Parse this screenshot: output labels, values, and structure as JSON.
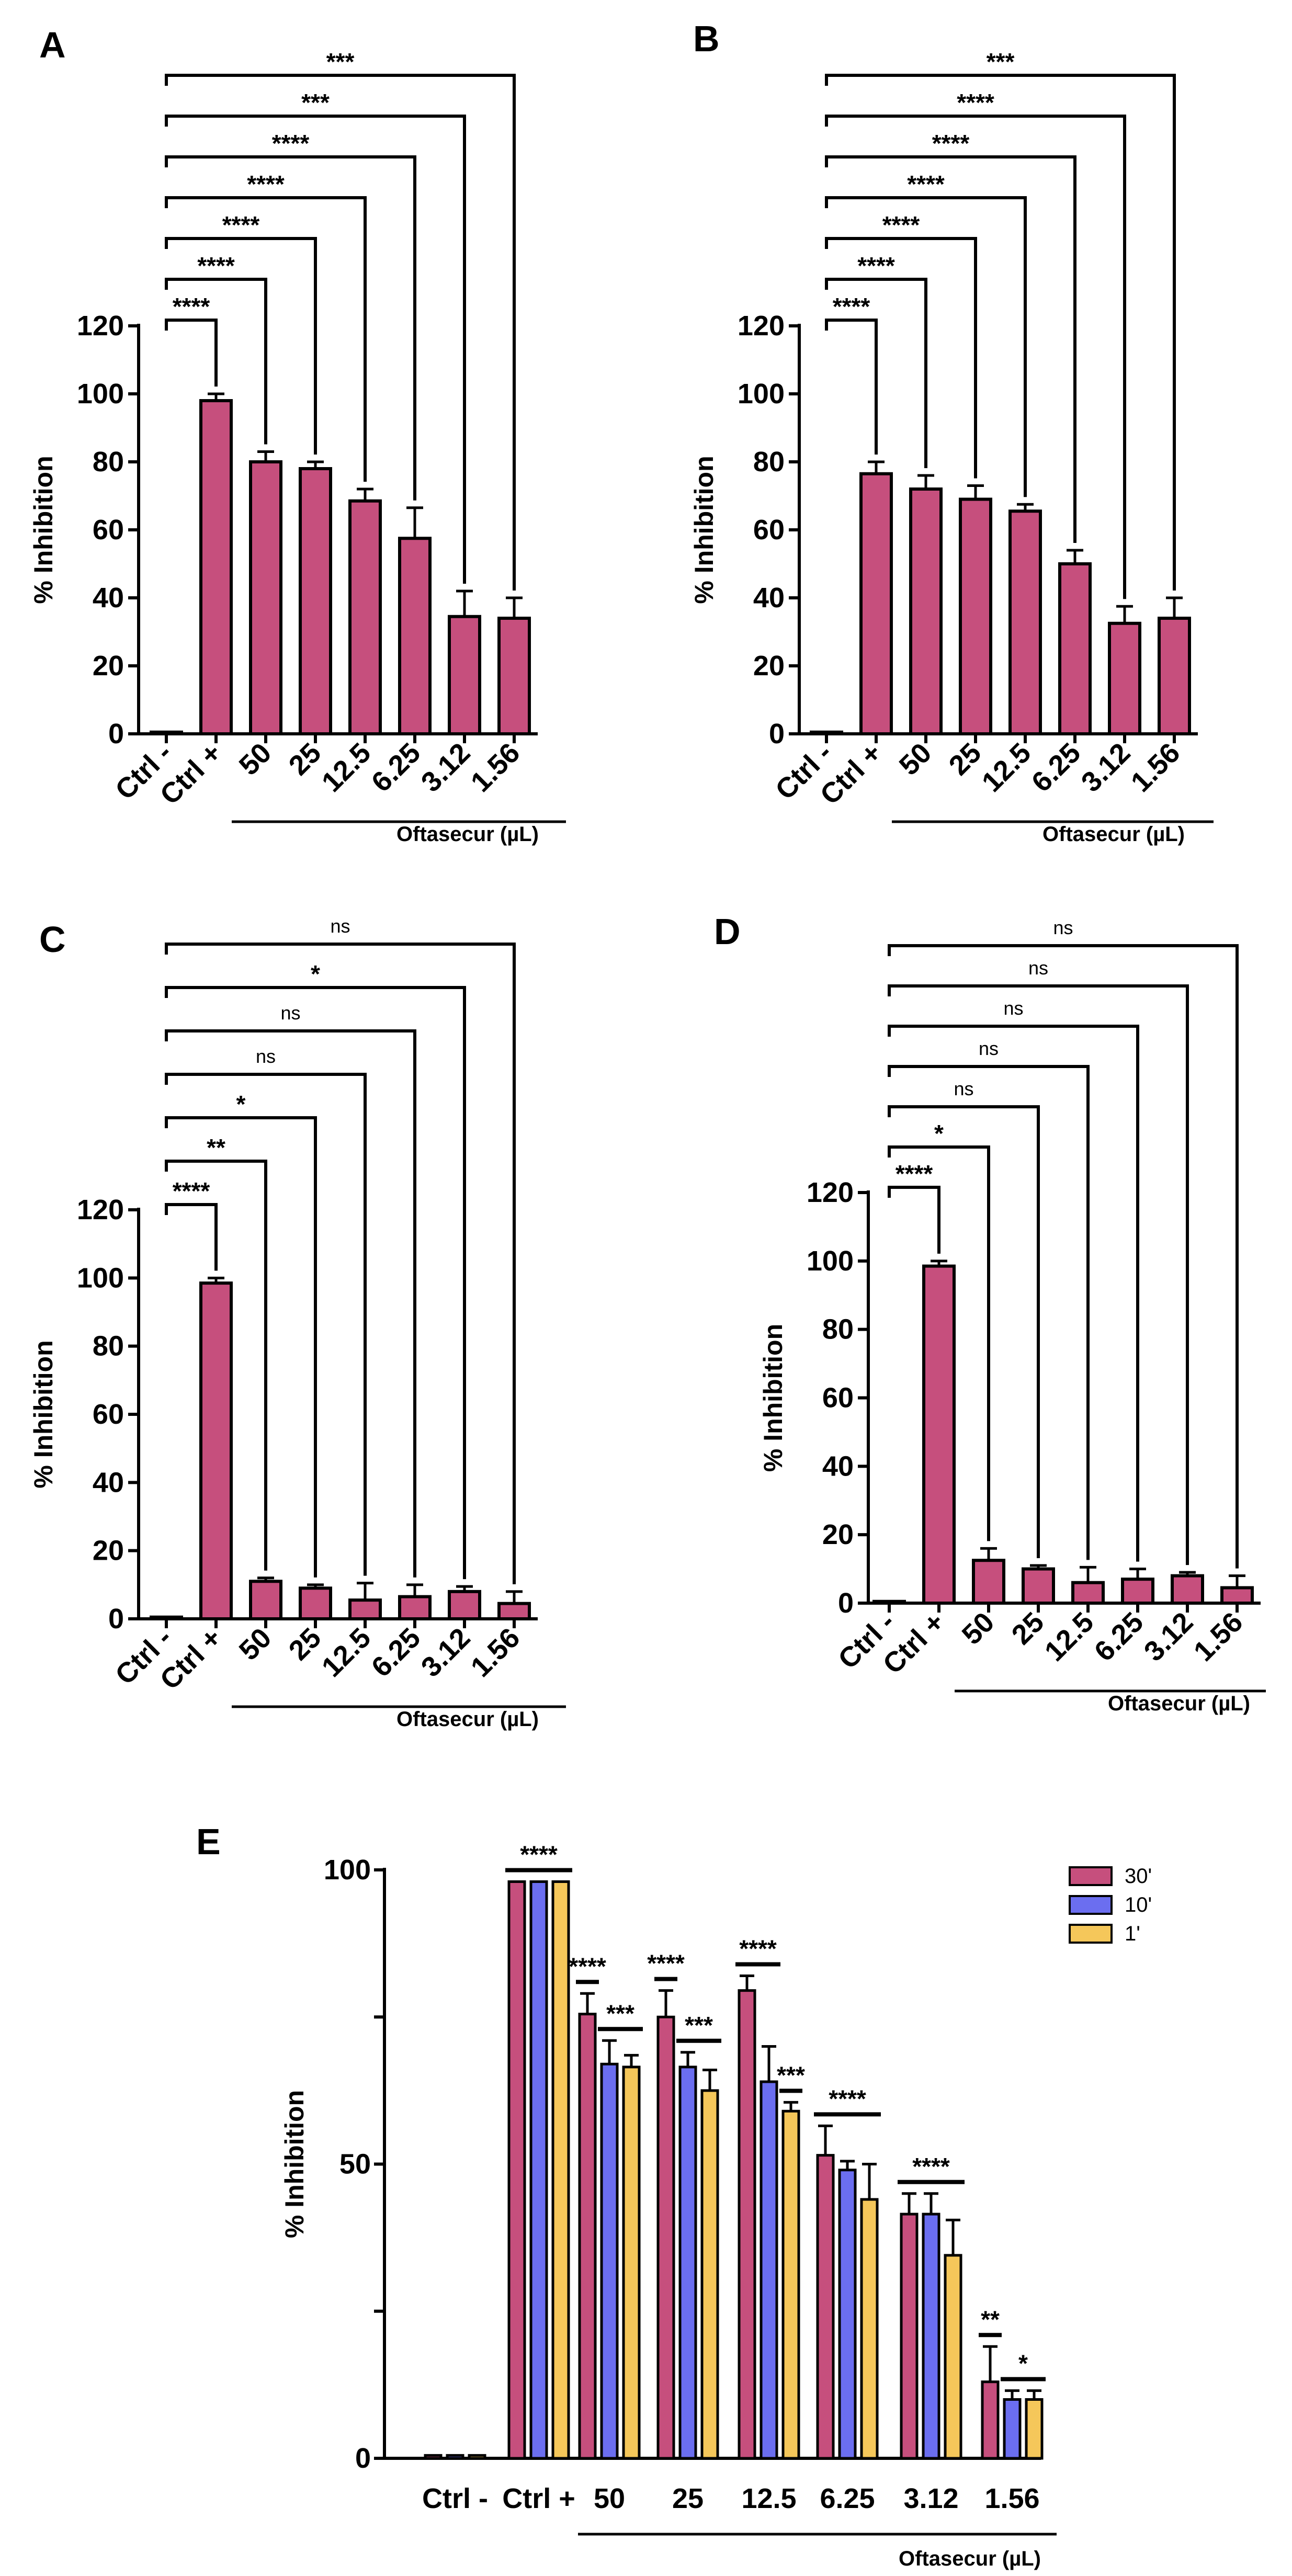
{
  "colors": {
    "s30": "#c64f7d",
    "s10": "#6b6ef0",
    "s1": "#f5c75a",
    "axis": "#000000"
  },
  "chart_data": [
    {
      "panel": "A",
      "type": "bar",
      "ylabel": "% Inhibition",
      "ylim": [
        0,
        120
      ],
      "yticks": [
        "0",
        "20",
        "40",
        "60",
        "80",
        "100",
        "120"
      ],
      "categories": [
        "Ctrl -",
        "Ctrl +",
        "50",
        "25",
        "12.5",
        "6.25",
        "3.12",
        "1.56"
      ],
      "values": [
        0.5,
        98,
        80,
        78,
        68.5,
        57.5,
        34.5,
        34
      ],
      "errors": [
        0,
        2,
        3,
        2,
        3.5,
        9,
        7.5,
        6
      ],
      "group_label": "Oftasecur (µL)",
      "comparisons": [
        {
          "to": 1,
          "label": "****"
        },
        {
          "to": 2,
          "label": "****"
        },
        {
          "to": 3,
          "label": "****"
        },
        {
          "to": 4,
          "label": "****"
        },
        {
          "to": 5,
          "label": "****"
        },
        {
          "to": 6,
          "label": "***"
        },
        {
          "to": 7,
          "label": "***"
        }
      ]
    },
    {
      "panel": "B",
      "type": "bar",
      "ylabel": "% Inhibition",
      "ylim": [
        0,
        120
      ],
      "yticks": [
        "0",
        "20",
        "40",
        "60",
        "80",
        "100",
        "120"
      ],
      "categories": [
        "Ctrl -",
        "Ctrl +",
        "50",
        "25",
        "12.5",
        "6.25",
        "3.12",
        "1.56"
      ],
      "values": [
        0.5,
        76.5,
        72,
        69,
        65.5,
        50,
        32.5,
        34
      ],
      "errors": [
        0,
        3.5,
        4,
        4,
        2,
        4,
        5,
        6
      ],
      "group_label": "Oftasecur (µL)",
      "comparisons": [
        {
          "to": 1,
          "label": "****"
        },
        {
          "to": 2,
          "label": "****"
        },
        {
          "to": 3,
          "label": "****"
        },
        {
          "to": 4,
          "label": "****"
        },
        {
          "to": 5,
          "label": "****"
        },
        {
          "to": 6,
          "label": "****"
        },
        {
          "to": 7,
          "label": "***"
        }
      ]
    },
    {
      "panel": "C",
      "type": "bar",
      "ylabel": "% Inhibition",
      "ylim": [
        0,
        120
      ],
      "yticks": [
        "0",
        "20",
        "40",
        "60",
        "80",
        "100",
        "120"
      ],
      "categories": [
        "Ctrl -",
        "Ctrl +",
        "50",
        "25",
        "12.5",
        "6.25",
        "3.12",
        "1.56"
      ],
      "values": [
        0.5,
        98.5,
        11,
        9,
        5.5,
        6.5,
        8,
        4.5
      ],
      "errors": [
        0,
        1.5,
        1,
        1,
        5,
        3.5,
        1.5,
        3.5
      ],
      "group_label": "Oftasecur (µL)",
      "comparisons": [
        {
          "to": 1,
          "label": "****"
        },
        {
          "to": 2,
          "label": "**"
        },
        {
          "to": 3,
          "label": "*"
        },
        {
          "to": 4,
          "label": "ns"
        },
        {
          "to": 5,
          "label": "ns"
        },
        {
          "to": 6,
          "label": "*"
        },
        {
          "to": 7,
          "label": "ns"
        }
      ]
    },
    {
      "panel": "D",
      "type": "bar",
      "ylabel": "% Inhibition",
      "ylim": [
        0,
        120
      ],
      "yticks": [
        "0",
        "20",
        "40",
        "60",
        "80",
        "100",
        "120"
      ],
      "categories": [
        "Ctrl -",
        "Ctrl +",
        "50",
        "25",
        "12.5",
        "6.25",
        "3.12",
        "1.56"
      ],
      "values": [
        0.5,
        98.5,
        12.5,
        10,
        6,
        7,
        8,
        4.5
      ],
      "errors": [
        0,
        1.5,
        3.5,
        1,
        4.5,
        3,
        1,
        3.5
      ],
      "group_label": "Oftasecur (µL)",
      "comparisons": [
        {
          "to": 1,
          "label": "****"
        },
        {
          "to": 2,
          "label": "*"
        },
        {
          "to": 3,
          "label": "ns"
        },
        {
          "to": 4,
          "label": "ns"
        },
        {
          "to": 5,
          "label": "ns"
        },
        {
          "to": 6,
          "label": "ns"
        },
        {
          "to": 7,
          "label": "ns"
        }
      ]
    },
    {
      "panel": "E",
      "type": "bar",
      "ylabel": "% Inhibition",
      "ylim": [
        0,
        100
      ],
      "yticks": [
        "0",
        "50",
        "100"
      ],
      "categories": [
        "Ctrl -",
        "Ctrl +",
        "50",
        "25",
        "12.5",
        "6.25",
        "3.12",
        "1.56"
      ],
      "group_label": "Oftasecur (µL)",
      "series": [
        {
          "name": "30'",
          "values": [
            0.5,
            98,
            75.5,
            75,
            79.5,
            51.5,
            41.5,
            13
          ],
          "errors": [
            0,
            0,
            3.5,
            4.5,
            2.5,
            5,
            3.5,
            6
          ]
        },
        {
          "name": "10'",
          "values": [
            0.5,
            98,
            67,
            66.5,
            64,
            49,
            41.5,
            10
          ],
          "errors": [
            0,
            0,
            4,
            2.5,
            6,
            1.5,
            3.5,
            1.5
          ]
        },
        {
          "name": "1'",
          "values": [
            0.5,
            98,
            66.5,
            62.5,
            59,
            44,
            34.5,
            10
          ],
          "errors": [
            0,
            0,
            2,
            3.5,
            1.5,
            6,
            6,
            1.5
          ]
        }
      ],
      "annotations": [
        {
          "category": "Ctrl +",
          "series": "all",
          "label": "****"
        },
        {
          "category": "50",
          "series": "30'",
          "label": "****"
        },
        {
          "category": "50",
          "series": "10'+1'",
          "label": "***"
        },
        {
          "category": "25",
          "series": "30'",
          "label": "****"
        },
        {
          "category": "25",
          "series": "10'+1'",
          "label": "***"
        },
        {
          "category": "12.5",
          "series": "30'+10'",
          "label": "****"
        },
        {
          "category": "12.5",
          "series": "1'",
          "label": "***"
        },
        {
          "category": "6.25",
          "series": "all",
          "label": "****"
        },
        {
          "category": "3.12",
          "series": "all",
          "label": "****"
        },
        {
          "category": "1.56",
          "series": "30'",
          "label": "**"
        },
        {
          "category": "1.56",
          "series": "10'+1'",
          "label": "*"
        }
      ]
    }
  ]
}
